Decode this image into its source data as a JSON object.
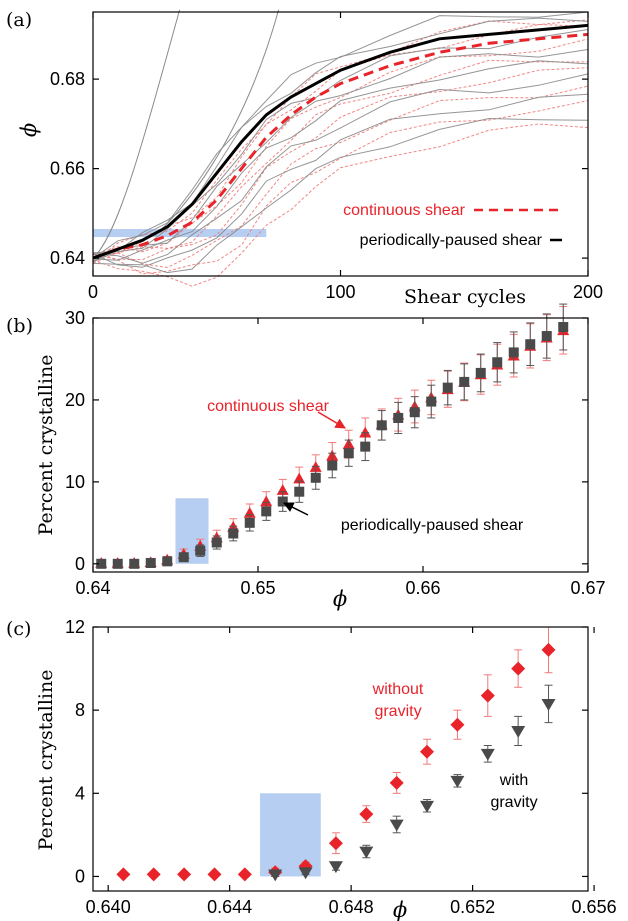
{
  "panels": {
    "a": {
      "label": "(a)"
    },
    "b": {
      "label": "(b)"
    },
    "c": {
      "label": "(c)"
    }
  },
  "colors": {
    "red": "#e8232a",
    "dark": "#4a4a4a",
    "band": "#a8c6ee",
    "thin_red": "#f07a7a",
    "thin_gray": "#8a8a8a"
  },
  "chart_data": [
    {
      "type": "line",
      "xlabel": "Shear cycles",
      "ylabel": "ϕ",
      "xlim": [
        0,
        200
      ],
      "ylim": [
        0.636,
        0.695
      ],
      "xticks": [
        "0",
        "100",
        "200"
      ],
      "yticks": [
        "0.64",
        "0.66",
        "0.68"
      ],
      "highlight_band": {
        "x": [
          0,
          70
        ],
        "y": [
          0.6447,
          0.6465
        ]
      },
      "series": [
        {
          "name": "continuous shear",
          "style": "dashed",
          "color": "#e8232a",
          "x": [
            0,
            10,
            20,
            30,
            40,
            50,
            60,
            70,
            80,
            90,
            100,
            120,
            140,
            160,
            180,
            200
          ],
          "y": [
            0.64,
            0.642,
            0.643,
            0.645,
            0.648,
            0.653,
            0.66,
            0.667,
            0.672,
            0.676,
            0.679,
            0.683,
            0.686,
            0.688,
            0.689,
            0.69
          ]
        },
        {
          "name": "periodically-paused shear",
          "style": "solid",
          "color": "#000000",
          "x": [
            0,
            10,
            20,
            30,
            40,
            50,
            60,
            70,
            80,
            90,
            100,
            120,
            140,
            160,
            180,
            200
          ],
          "y": [
            0.64,
            0.642,
            0.644,
            0.647,
            0.652,
            0.659,
            0.666,
            0.672,
            0.676,
            0.679,
            0.682,
            0.686,
            0.689,
            0.69,
            0.691,
            0.692
          ]
        }
      ],
      "legend": {
        "continuous": "continuous shear",
        "paused": "periodically-paused shear"
      }
    },
    {
      "type": "scatter",
      "xlabel": "ϕ",
      "ylabel": "Percent crystalline",
      "xlim": [
        0.64,
        0.67
      ],
      "ylim": [
        -1,
        30
      ],
      "xticks": [
        "0.64",
        "0.65",
        "0.66",
        "0.67"
      ],
      "yticks": [
        "0",
        "10",
        "20",
        "30"
      ],
      "highlight_band": {
        "x": [
          0.645,
          0.647
        ],
        "y": [
          0,
          8
        ]
      },
      "series": [
        {
          "name": "continuous shear",
          "marker": "triangle",
          "color": "#e8232a",
          "x": [
            0.6405,
            0.6415,
            0.6425,
            0.6435,
            0.6445,
            0.6455,
            0.6465,
            0.6475,
            0.6485,
            0.6495,
            0.6505,
            0.6515,
            0.6525,
            0.6535,
            0.6545,
            0.6555,
            0.6565,
            0.6575,
            0.6585,
            0.6595,
            0.6605,
            0.6615,
            0.6625,
            0.6635,
            0.6645,
            0.6655,
            0.6665,
            0.6675,
            0.6685
          ],
          "y": [
            0.1,
            0.1,
            0.1,
            0.2,
            0.5,
            1.2,
            2.2,
            3.2,
            4.5,
            6.2,
            7.6,
            9.0,
            10.4,
            11.8,
            13.2,
            14.6,
            16.0,
            17.0,
            18.2,
            19.2,
            20.3,
            21.3,
            22.2,
            23.1,
            24.3,
            25.4,
            26.6,
            27.6,
            28.5
          ],
          "err": [
            0.2,
            0.2,
            0.2,
            0.3,
            0.4,
            0.6,
            0.8,
            0.9,
            1.0,
            1.1,
            1.2,
            1.3,
            1.4,
            1.5,
            1.6,
            1.7,
            1.8,
            1.9,
            2.0,
            2.0,
            2.1,
            2.2,
            2.3,
            2.4,
            2.5,
            2.6,
            2.7,
            2.8,
            2.9
          ]
        },
        {
          "name": "periodically-paused shear",
          "marker": "square",
          "color": "#4a4a4a",
          "x": [
            0.6405,
            0.6415,
            0.6425,
            0.6435,
            0.6445,
            0.6455,
            0.6465,
            0.6475,
            0.6485,
            0.6495,
            0.6505,
            0.6515,
            0.6525,
            0.6535,
            0.6545,
            0.6555,
            0.6565,
            0.6575,
            0.6585,
            0.6595,
            0.6605,
            0.6615,
            0.6625,
            0.6635,
            0.6645,
            0.6655,
            0.6665,
            0.6675,
            0.6685
          ],
          "y": [
            0.0,
            0.0,
            0.0,
            0.1,
            0.3,
            0.8,
            1.6,
            2.6,
            3.7,
            5.0,
            6.4,
            7.6,
            8.8,
            10.5,
            12.0,
            13.5,
            14.3,
            16.9,
            17.8,
            18.5,
            19.8,
            21.5,
            22.2,
            23.3,
            24.6,
            25.8,
            26.8,
            27.8,
            28.9
          ],
          "err": [
            0.2,
            0.2,
            0.2,
            0.2,
            0.3,
            0.5,
            0.7,
            0.8,
            0.9,
            1.0,
            1.1,
            1.2,
            1.3,
            1.4,
            1.5,
            1.6,
            1.7,
            1.8,
            1.9,
            1.9,
            2.0,
            2.1,
            2.2,
            2.3,
            2.4,
            2.5,
            2.6,
            2.7,
            2.8
          ]
        }
      ],
      "annotations": {
        "continuous": "continuous shear",
        "paused": "periodically-paused shear"
      }
    },
    {
      "type": "scatter",
      "xlabel": "ϕ",
      "ylabel": "Percent crystalline",
      "xlim": [
        0.6395,
        0.6558
      ],
      "ylim": [
        -0.7,
        12
      ],
      "xticks": [
        "0.640",
        "0.644",
        "0.648",
        "0.652",
        "0.656"
      ],
      "yticks": [
        "0",
        "4",
        "8",
        "12"
      ],
      "highlight_band": {
        "x": [
          0.645,
          0.647
        ],
        "y": [
          0,
          4
        ]
      },
      "series": [
        {
          "name": "without gravity",
          "marker": "diamond",
          "color": "#e8232a",
          "x": [
            0.6405,
            0.6415,
            0.6425,
            0.6435,
            0.6445,
            0.6455,
            0.6465,
            0.6475,
            0.6485,
            0.6495,
            0.6505,
            0.6515,
            0.6525,
            0.6535,
            0.6545
          ],
          "y": [
            0.1,
            0.1,
            0.1,
            0.1,
            0.1,
            0.2,
            0.5,
            1.6,
            3.0,
            4.5,
            6.0,
            7.3,
            8.7,
            10.0,
            10.9
          ],
          "err": [
            0.1,
            0.1,
            0.1,
            0.1,
            0.1,
            0.2,
            0.2,
            0.5,
            0.4,
            0.5,
            0.6,
            0.7,
            1.0,
            0.9,
            1.1
          ]
        },
        {
          "name": "with gravity",
          "marker": "triangle-down",
          "color": "#4a4a4a",
          "x": [
            0.6455,
            0.6465,
            0.6475,
            0.6485,
            0.6495,
            0.6505,
            0.6515,
            0.6525,
            0.6535,
            0.6545
          ],
          "y": [
            0.1,
            0.2,
            0.5,
            1.2,
            2.5,
            3.4,
            4.6,
            5.9,
            7.0,
            8.3
          ],
          "err": [
            0.1,
            0.1,
            0.2,
            0.3,
            0.4,
            0.3,
            0.3,
            0.4,
            0.7,
            0.9
          ]
        }
      ],
      "annotations": {
        "without_line1": "without",
        "without_line2": "gravity",
        "with_line1": "with",
        "with_line2": "gravity"
      }
    }
  ]
}
